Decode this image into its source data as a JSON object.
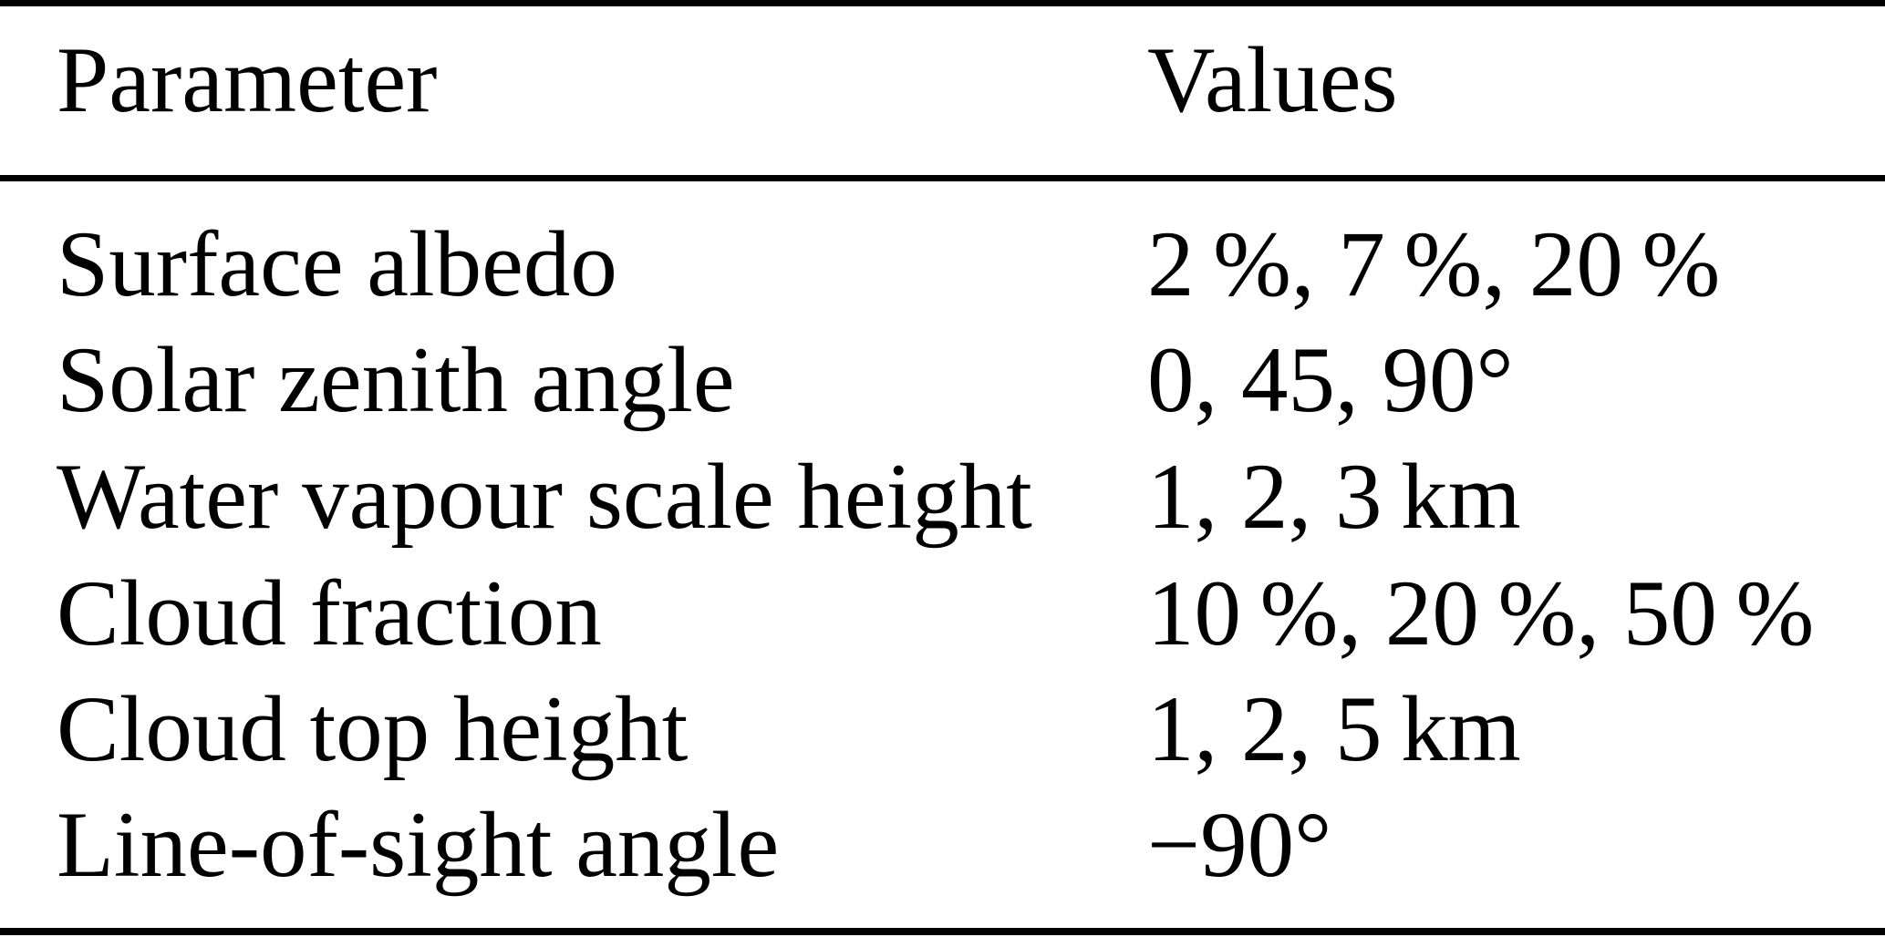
{
  "colors": {
    "text": "#000000",
    "background": "#ffffff",
    "rule": "#000000"
  },
  "table": {
    "columns": {
      "parameter": "Parameter",
      "values": "Values"
    },
    "rows": [
      {
        "parameter": "Surface albedo",
        "values": "2 %, 7 %, 20 %"
      },
      {
        "parameter": "Solar zenith angle",
        "values": "0, 45, 90°"
      },
      {
        "parameter": "Water vapour scale height",
        "values": "1, 2, 3 km"
      },
      {
        "parameter": "Cloud fraction",
        "values": "10 %, 20 %, 50 %"
      },
      {
        "parameter": "Cloud top height",
        "values": "1, 2, 5 km"
      },
      {
        "parameter": "Line-of-sight angle",
        "values": "−90°"
      }
    ]
  }
}
